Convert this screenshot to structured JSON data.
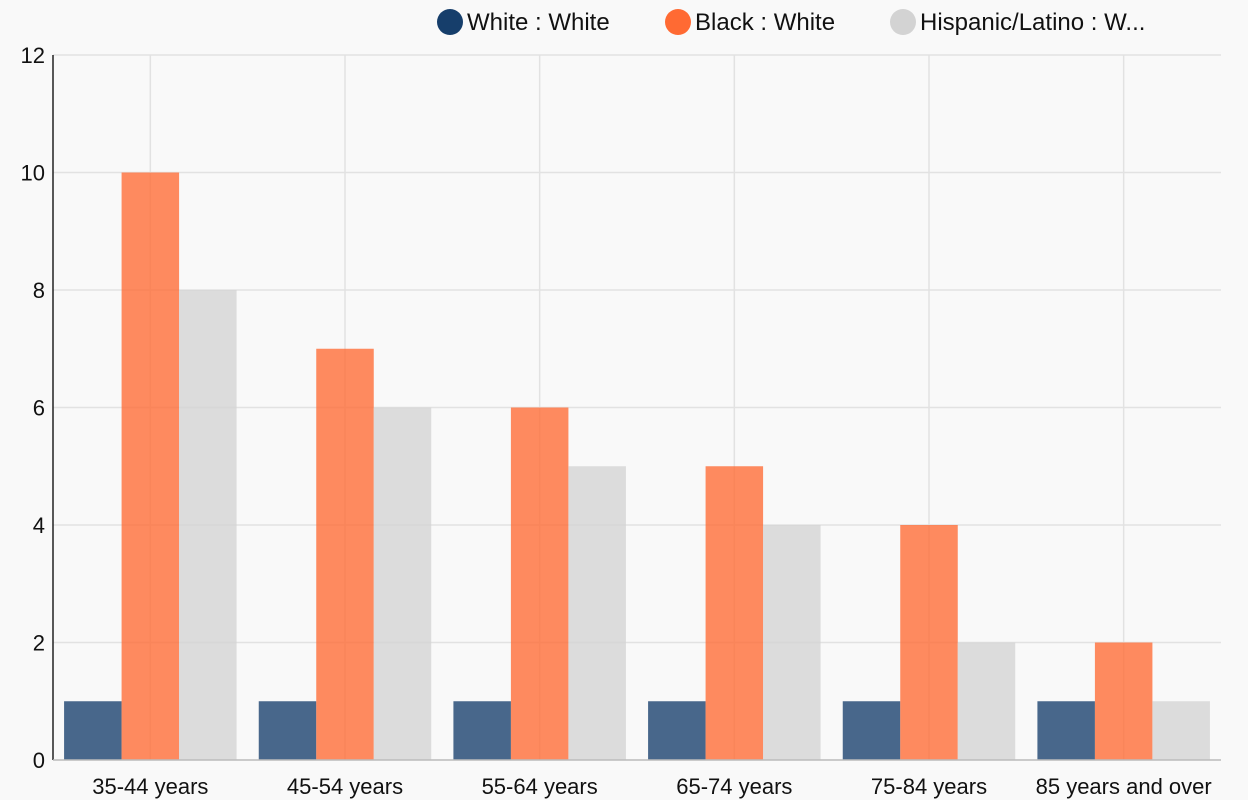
{
  "chart_data": {
    "type": "bar",
    "categories": [
      "35-44 years",
      "45-54 years",
      "55-64 years",
      "65-74 years",
      "75-84 years",
      "85 years and over"
    ],
    "series": [
      {
        "name": "White : White",
        "color": "#163e6b",
        "values": [
          1,
          1,
          1,
          1,
          1,
          1
        ]
      },
      {
        "name": "Black : White",
        "color": "#ff6a33",
        "values": [
          10,
          7,
          6,
          5,
          4,
          2
        ]
      },
      {
        "name": "Hispanic/Latino : W...",
        "color": "#d3d3d3",
        "values": [
          8,
          6,
          5,
          4,
          2,
          1
        ]
      }
    ],
    "ylim": [
      0,
      12
    ],
    "yticks": [
      0,
      2,
      4,
      6,
      8,
      10,
      12
    ],
    "grid": true,
    "legend": "top-right"
  }
}
